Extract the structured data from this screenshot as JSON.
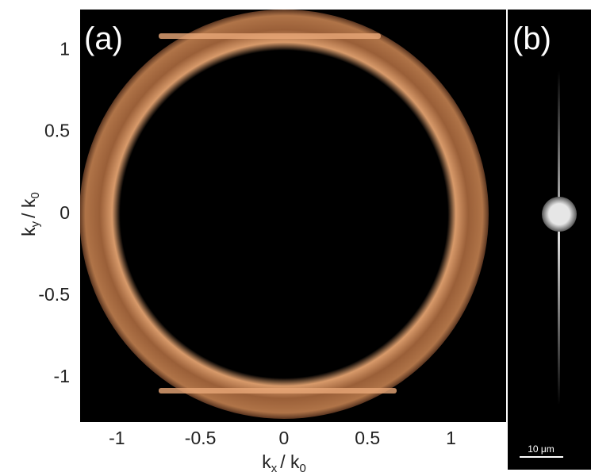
{
  "chart_data": [
    {
      "type": "image",
      "panel_label": "(a)",
      "xlabel_parts": [
        "k",
        "x",
        "/ k",
        "0"
      ],
      "ylabel_parts": [
        "k",
        "y",
        "/ k",
        "0"
      ],
      "xlim": [
        -1.22,
        1.33
      ],
      "ylim": [
        -1.28,
        1.24
      ],
      "xticks": [
        -1,
        -0.5,
        0,
        0.5,
        1
      ],
      "yticks": [
        -1,
        -0.5,
        0,
        0.5,
        1
      ]
    },
    {
      "type": "image",
      "panel_label": "(b)",
      "scale_bar_label": "10 μm"
    }
  ]
}
